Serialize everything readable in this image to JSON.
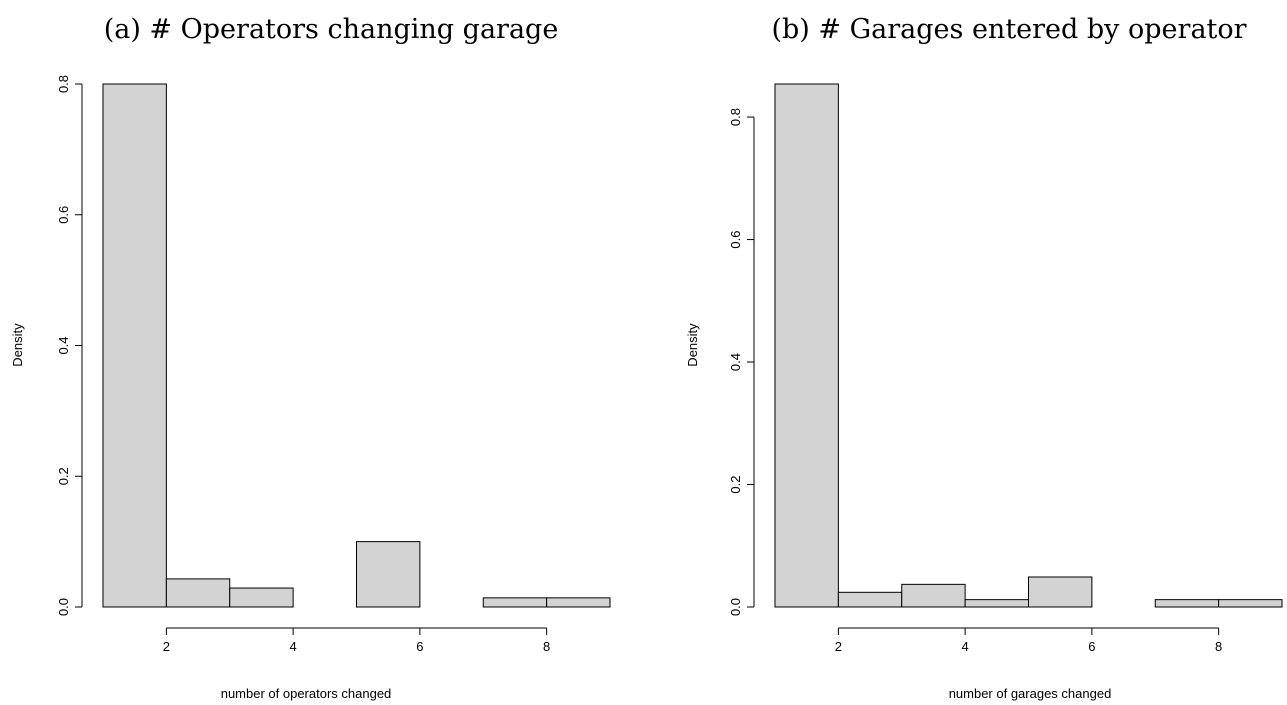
{
  "chart_data": [
    {
      "type": "bar",
      "title": "(a) # Operators changing garage",
      "xlabel": "number of operators changed",
      "ylabel": "Density",
      "bins": [
        [
          1,
          2
        ],
        [
          2,
          3
        ],
        [
          3,
          4
        ],
        [
          4,
          5
        ],
        [
          5,
          6
        ],
        [
          6,
          7
        ],
        [
          7,
          8
        ],
        [
          8,
          9
        ]
      ],
      "values": [
        0.8,
        0.043,
        0.029,
        0.0,
        0.1,
        0.0,
        0.014,
        0.014
      ],
      "xlim": [
        1,
        9
      ],
      "ylim": [
        0,
        0.8
      ],
      "xticks": [
        2,
        4,
        6,
        8
      ],
      "xtick_labels": [
        "2",
        "4",
        "6",
        "8"
      ],
      "yticks": [
        0.0,
        0.2,
        0.4,
        0.6,
        0.8
      ],
      "ytick_labels": [
        "0.0",
        "0.2",
        "0.4",
        "0.6",
        "0.8"
      ],
      "bar_color": "#d3d3d3"
    },
    {
      "type": "bar",
      "title": "(b) # Garages entered by operator",
      "xlabel": "number of garages changed",
      "ylabel": "Density",
      "bins": [
        [
          1,
          2
        ],
        [
          2,
          3
        ],
        [
          3,
          4
        ],
        [
          4,
          5
        ],
        [
          5,
          6
        ],
        [
          6,
          7
        ],
        [
          7,
          8
        ],
        [
          8,
          9
        ]
      ],
      "values": [
        0.854,
        0.024,
        0.037,
        0.012,
        0.049,
        0.0,
        0.012,
        0.012
      ],
      "xlim": [
        1,
        9
      ],
      "ylim": [
        0,
        0.854
      ],
      "xticks": [
        2,
        4,
        6,
        8
      ],
      "xtick_labels": [
        "2",
        "4",
        "6",
        "8"
      ],
      "yticks": [
        0.0,
        0.2,
        0.4,
        0.6,
        0.8
      ],
      "ytick_labels": [
        "0.0",
        "0.2",
        "0.4",
        "0.6",
        "0.8"
      ],
      "bar_color": "#d3d3d3"
    }
  ]
}
